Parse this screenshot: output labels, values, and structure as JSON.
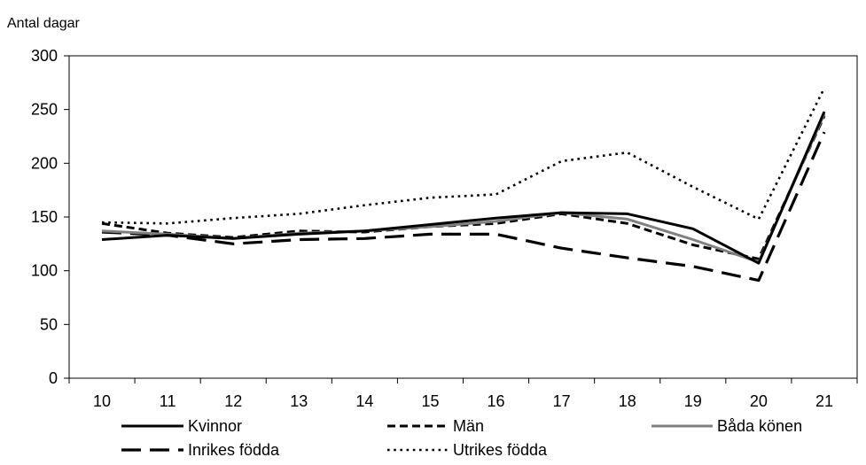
{
  "chart_data": {
    "type": "line",
    "title": "",
    "xlabel": "",
    "ylabel": "Antal dagar",
    "categories": [
      "10",
      "11",
      "12",
      "13",
      "14",
      "15",
      "16",
      "17",
      "18",
      "19",
      "20",
      "21"
    ],
    "ylim": [
      0,
      300
    ],
    "yticks": [
      0,
      50,
      100,
      150,
      200,
      250,
      300
    ],
    "grid": false,
    "legend_position": "bottom",
    "series": [
      {
        "name": "Kvinnor",
        "color": "#000000",
        "style": "solid",
        "values": [
          129,
          133,
          130,
          134,
          137,
          143,
          149,
          154,
          153,
          139,
          107,
          248
        ]
      },
      {
        "name": "Män",
        "color": "#000000",
        "style": "dashed",
        "values": [
          144,
          135,
          131,
          137,
          136,
          141,
          144,
          153,
          144,
          124,
          111,
          244
        ]
      },
      {
        "name": "Båda könen",
        "color": "#808080",
        "style": "solid",
        "values": [
          137,
          134,
          130,
          135,
          137,
          141,
          146,
          154,
          148,
          129,
          108,
          246
        ]
      },
      {
        "name": "Inrikes födda",
        "color": "#000000",
        "style": "long-dashed",
        "values": [
          136,
          133,
          125,
          129,
          130,
          134,
          134,
          121,
          112,
          104,
          91,
          229
        ]
      },
      {
        "name": "Utrikes födda",
        "color": "#000000",
        "style": "dotted",
        "values": [
          145,
          144,
          149,
          153,
          161,
          168,
          171,
          202,
          210,
          178,
          148,
          270
        ]
      }
    ]
  }
}
